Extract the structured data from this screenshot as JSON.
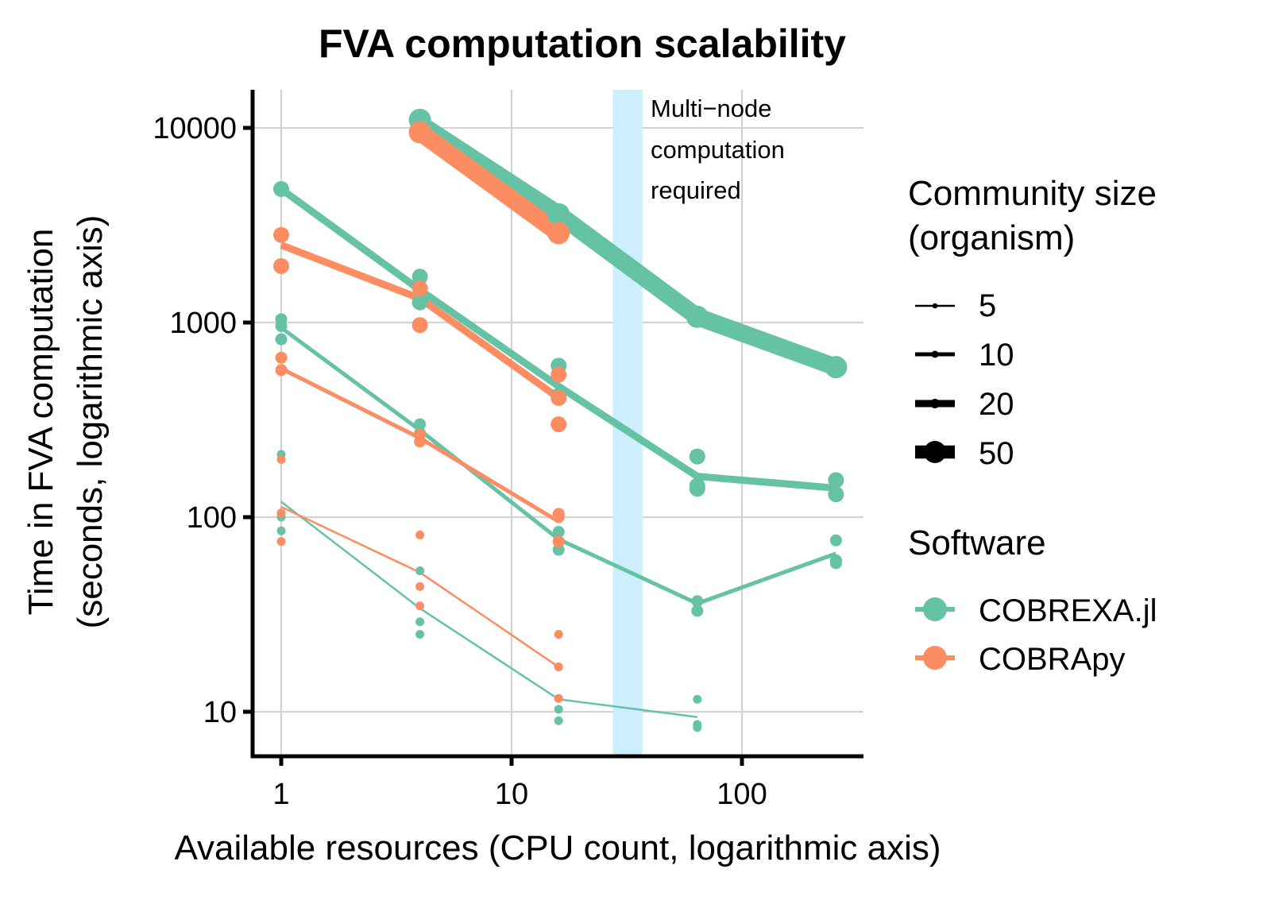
{
  "chart_data": {
    "type": "line",
    "title": "FVA computation scalability",
    "xlabel": "Available resources (CPU count, logarithmic axis)",
    "ylabel_lines": [
      "Time in FVA computation",
      "(seconds, logarithmic axis)"
    ],
    "x_scale": "log10",
    "y_scale": "log10",
    "xlim": [
      0.8,
      330
    ],
    "ylim": [
      5.8,
      16000
    ],
    "x_ticks": [
      1,
      10,
      100
    ],
    "x_tick_labels": [
      "1",
      "10",
      "100"
    ],
    "y_ticks": [
      10,
      100,
      1000,
      10000
    ],
    "y_tick_labels": [
      "10",
      "100",
      "1000",
      "10000"
    ],
    "grid": true,
    "annotation": {
      "band_x_range": [
        27.5,
        37
      ],
      "band_color": "#cdeefd",
      "text_lines": [
        "Multi−node",
        "computation",
        "required"
      ]
    },
    "colors": {
      "COBREXA.jl": "#66c2a5",
      "COBRApy": "#fc8d62"
    },
    "legends": {
      "size": {
        "title_lines": [
          "Community size",
          "(organism)"
        ],
        "entries": [
          "5",
          "10",
          "20",
          "50"
        ],
        "placement": "right"
      },
      "software": {
        "title": "Software",
        "entries": [
          "COBREXA.jl",
          "COBRApy"
        ],
        "placement": "right"
      }
    },
    "series": [
      {
        "name": "COBREXA.jl",
        "community_size": 5,
        "line": {
          "x": [
            1,
            4,
            16,
            64
          ],
          "y": [
            120,
            34,
            11.6,
            9.4
          ]
        },
        "points": [
          [
            1,
            210
          ],
          [
            1,
            100
          ],
          [
            1,
            85
          ],
          [
            4,
            53
          ],
          [
            4,
            29
          ],
          [
            4,
            25
          ],
          [
            16,
            17
          ],
          [
            16,
            10.3
          ],
          [
            16,
            9
          ],
          [
            64,
            11.6
          ],
          [
            64,
            8.6
          ],
          [
            64,
            8.3
          ]
        ]
      },
      {
        "name": "COBRApy",
        "community_size": 5,
        "line": {
          "x": [
            1,
            4,
            16
          ],
          "y": [
            113,
            52,
            17
          ]
        },
        "points": [
          [
            1,
            198
          ],
          [
            1,
            105
          ],
          [
            1,
            75
          ],
          [
            4,
            81
          ],
          [
            4,
            44
          ],
          [
            4,
            35
          ],
          [
            16,
            25
          ],
          [
            16,
            17
          ],
          [
            16,
            11.7
          ]
        ]
      },
      {
        "name": "COBREXA.jl",
        "community_size": 10,
        "line": {
          "x": [
            1,
            4,
            16,
            64,
            256
          ],
          "y": [
            940,
            280,
            77,
            36,
            65
          ]
        },
        "points": [
          [
            1,
            1040
          ],
          [
            1,
            960
          ],
          [
            1,
            820
          ],
          [
            4,
            300
          ],
          [
            4,
            270
          ],
          [
            16,
            84
          ],
          [
            16,
            68
          ],
          [
            64,
            37
          ],
          [
            64,
            33
          ],
          [
            256,
            76
          ],
          [
            256,
            60
          ],
          [
            256,
            58
          ]
        ]
      },
      {
        "name": "COBRApy",
        "community_size": 10,
        "line": {
          "x": [
            1,
            4,
            16
          ],
          "y": [
            580,
            255,
            95
          ]
        },
        "points": [
          [
            1,
            660
          ],
          [
            1,
            570
          ],
          [
            4,
            265
          ],
          [
            4,
            245
          ],
          [
            16,
            104
          ],
          [
            16,
            100
          ],
          [
            16,
            75
          ]
        ]
      },
      {
        "name": "COBREXA.jl",
        "community_size": 20,
        "line": {
          "x": [
            1,
            4,
            16,
            64,
            256
          ],
          "y": [
            4850,
            1470,
            470,
            162,
            141
          ]
        },
        "points": [
          [
            1,
            4850
          ],
          [
            4,
            1720
          ],
          [
            4,
            1270
          ],
          [
            16,
            600
          ],
          [
            16,
            420
          ],
          [
            64,
            205
          ],
          [
            64,
            145
          ],
          [
            64,
            140
          ],
          [
            256,
            155
          ],
          [
            256,
            131
          ]
        ]
      },
      {
        "name": "COBRApy",
        "community_size": 20,
        "line": {
          "x": [
            1,
            4,
            16
          ],
          "y": [
            2500,
            1330,
            410
          ]
        },
        "points": [
          [
            1,
            2820
          ],
          [
            1,
            1950
          ],
          [
            4,
            1500
          ],
          [
            4,
            970
          ],
          [
            16,
            540
          ],
          [
            16,
            410
          ],
          [
            16,
            300
          ]
        ]
      },
      {
        "name": "COBREXA.jl",
        "community_size": 50,
        "line": {
          "x": [
            4,
            16,
            64,
            256
          ],
          "y": [
            10500,
            3600,
            1070,
            590
          ]
        },
        "points": [
          [
            4,
            11000
          ],
          [
            16,
            3600
          ],
          [
            64,
            1070
          ],
          [
            256,
            590
          ]
        ]
      },
      {
        "name": "COBRApy",
        "community_size": 50,
        "line": {
          "x": [
            4,
            16
          ],
          "y": [
            9500,
            2880
          ]
        },
        "points": [
          [
            4,
            9500
          ],
          [
            16,
            2880
          ]
        ]
      }
    ]
  }
}
